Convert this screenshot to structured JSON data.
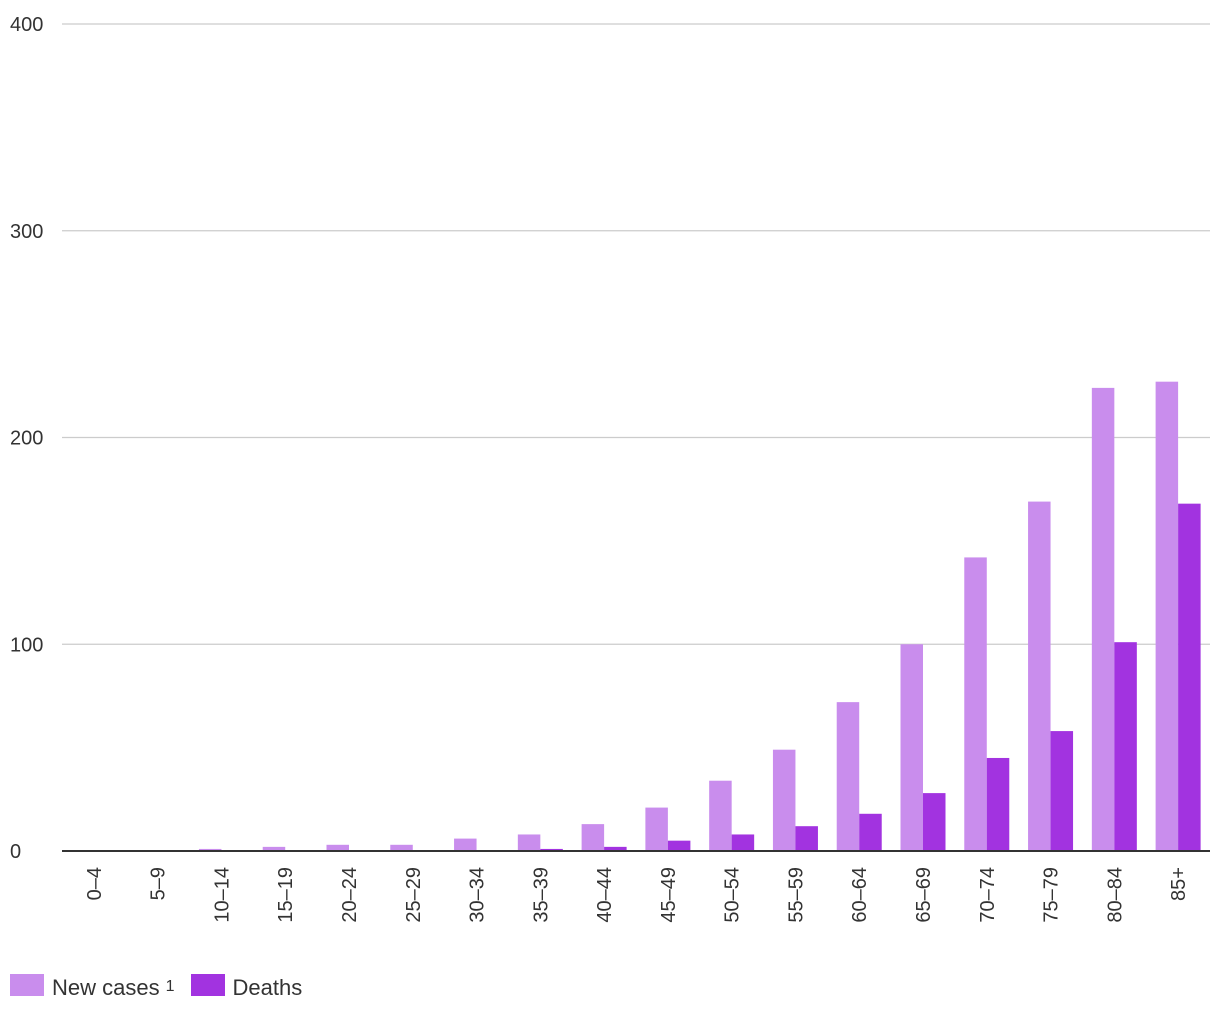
{
  "chart_data": {
    "type": "bar",
    "title": "",
    "xlabel": "",
    "ylabel": "",
    "ylim": [
      0,
      400
    ],
    "yticks": [
      0,
      100,
      200,
      300,
      400
    ],
    "grid": true,
    "legend_position": "bottom-left",
    "categories": [
      "0–4",
      "5–9",
      "10–14",
      "15–19",
      "20–24",
      "25–29",
      "30–34",
      "35–39",
      "40–44",
      "45–49",
      "50–54",
      "55–59",
      "60–64",
      "65–69",
      "70–74",
      "75–79",
      "80–84",
      "85+"
    ],
    "series": [
      {
        "name": "New cases",
        "footnote": "1",
        "color": "#c98ded",
        "values": [
          0,
          0,
          1,
          2,
          3,
          3,
          6,
          8,
          13,
          21,
          34,
          49,
          72,
          100,
          142,
          169,
          224,
          227
        ]
      },
      {
        "name": "Deaths",
        "color": "#a233e0",
        "values": [
          0,
          0,
          0,
          0,
          0,
          0,
          0,
          1,
          2,
          5,
          8,
          12,
          18,
          28,
          45,
          58,
          101,
          168
        ]
      }
    ]
  }
}
